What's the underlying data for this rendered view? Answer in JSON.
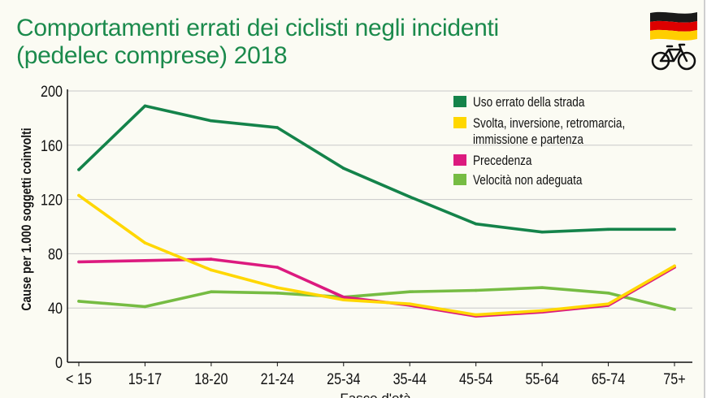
{
  "chart_data": {
    "type": "line",
    "title_line1": "Comportamenti errati dei ciclisti negli incidenti",
    "title_line2": "(pedelec comprese) 2018",
    "xlabel": "Fasce d'età",
    "ylabel": "Cause per 1.000 soggetti coinvolti",
    "ylim": [
      0,
      200
    ],
    "yticks": [
      0,
      40,
      80,
      120,
      160,
      200
    ],
    "grid": true,
    "legend_position": "top-right",
    "categories": [
      "< 15",
      "15-17",
      "18-20",
      "21-24",
      "25-34",
      "35-44",
      "45-54",
      "55-64",
      "65-74",
      "75+"
    ],
    "series": [
      {
        "name": "Uso errato della strada",
        "name_line1": "Uso errato della strada",
        "name_line2": "",
        "color": "#14834a",
        "values": [
          142,
          189,
          178,
          173,
          143,
          122,
          102,
          96,
          98,
          98
        ]
      },
      {
        "name": "Svolta, inversione, retromarcia, immissione e partenza",
        "name_line1": "Svolta, inversione, retromarcia,",
        "name_line2": "immissione e partenza",
        "color": "#ffd700",
        "values": [
          123,
          88,
          68,
          55,
          46,
          43,
          35,
          38,
          43,
          71
        ]
      },
      {
        "name": "Precedenza",
        "name_line1": "Precedenza",
        "name_line2": "",
        "color": "#dc1a7f",
        "values": [
          74,
          75,
          76,
          70,
          48,
          42,
          34,
          37,
          42,
          70
        ]
      },
      {
        "name": "Velocità non adeguata",
        "name_line1": "Velocità non adeguata",
        "name_line2": "",
        "color": "#76bc43",
        "values": [
          45,
          41,
          52,
          51,
          48,
          52,
          53,
          55,
          51,
          39
        ]
      }
    ]
  },
  "icons": {
    "flag": "germany-flag-icon",
    "bike": "bicycle-icon",
    "flag_colors": [
      "#1a1a1a",
      "#dd0000",
      "#ffce00"
    ]
  }
}
